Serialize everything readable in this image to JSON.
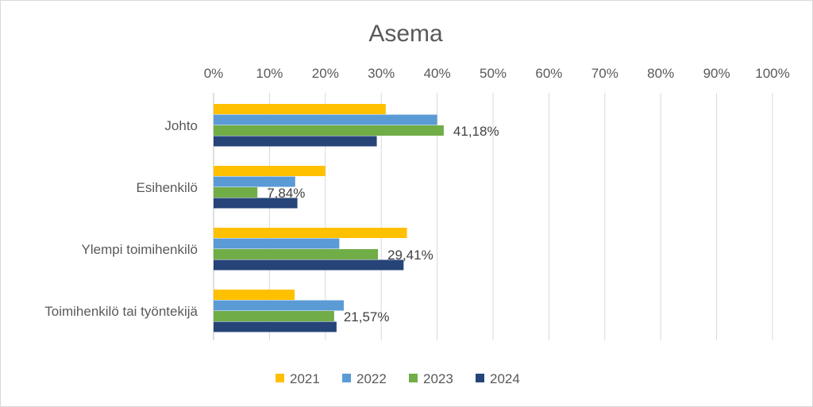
{
  "chart_data": {
    "type": "bar",
    "orientation": "horizontal",
    "title": "Asema",
    "categories": [
      "Johto",
      "Esihenkilö",
      "Ylempi toimihenkilö",
      "Toimihenkilö tai työntekijä"
    ],
    "x_ticks": [
      "0%",
      "10%",
      "20%",
      "30%",
      "40%",
      "50%",
      "60%",
      "70%",
      "80%",
      "90%",
      "100%"
    ],
    "xlim": [
      0,
      100
    ],
    "grid": true,
    "legend_position": "bottom",
    "series": [
      {
        "name": "2021",
        "color": "#FFC000",
        "values": [
          30.8,
          20.0,
          34.6,
          14.5
        ]
      },
      {
        "name": "2022",
        "color": "#5B9BD5",
        "values": [
          40.0,
          14.6,
          22.5,
          23.3
        ]
      },
      {
        "name": "2023",
        "color": "#70AD47",
        "values": [
          41.18,
          7.84,
          29.41,
          21.57
        ],
        "data_labels": [
          "41,18%",
          "7,84%",
          "29,41%",
          "21,57%"
        ]
      },
      {
        "name": "2024",
        "color": "#264478",
        "values": [
          29.2,
          15.0,
          34.0,
          22.0
        ]
      }
    ]
  }
}
